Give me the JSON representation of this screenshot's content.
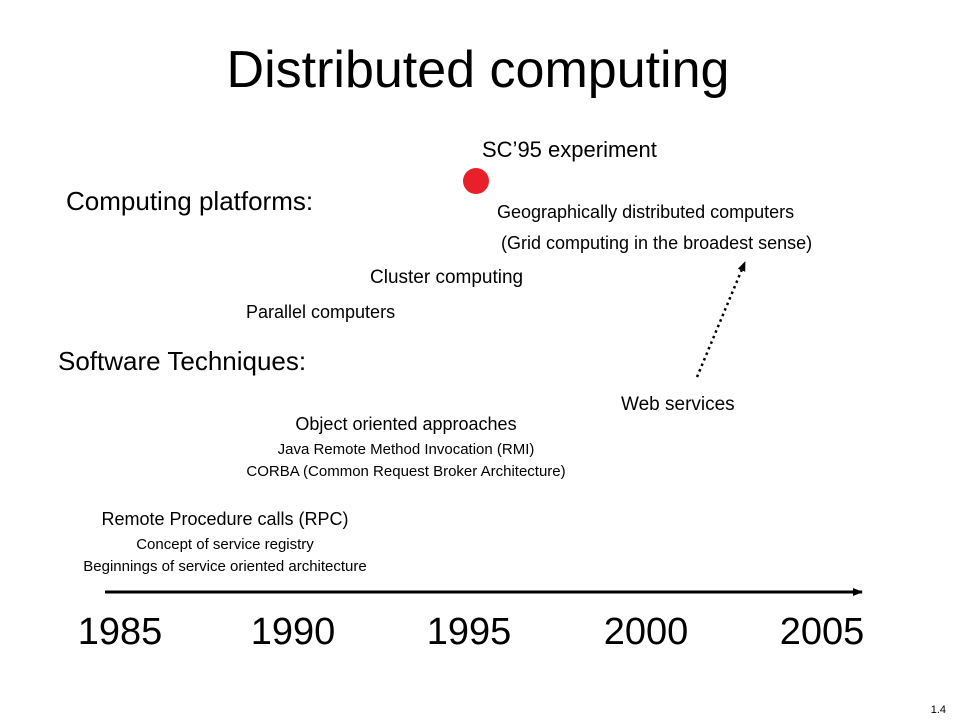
{
  "title": "Distributed computing",
  "sc95": {
    "label": "SC’95 experiment",
    "marker_color": "#e8202a"
  },
  "computing_platforms": {
    "heading": "Computing platforms:",
    "geographic_line1": "Geographically distributed computers",
    "geographic_line2": "(Grid computing in the broadest sense)",
    "cluster": "Cluster computing",
    "parallel": "Parallel computers"
  },
  "software_techniques": {
    "heading": "Software Techniques:",
    "web_services": "Web services",
    "object_oriented": {
      "title": "Object oriented approaches",
      "line1": "Java Remote Method Invocation (RMI)",
      "line2": "CORBA (Common Request Broker Architecture)"
    },
    "rpc": {
      "title": "Remote Procedure calls (RPC)",
      "line1": "Concept of service registry",
      "line2": "Beginnings of service oriented architecture"
    }
  },
  "timeline": {
    "years": [
      "1985",
      "1990",
      "1995",
      "2000",
      "2005"
    ]
  },
  "slide_number": "1.4"
}
